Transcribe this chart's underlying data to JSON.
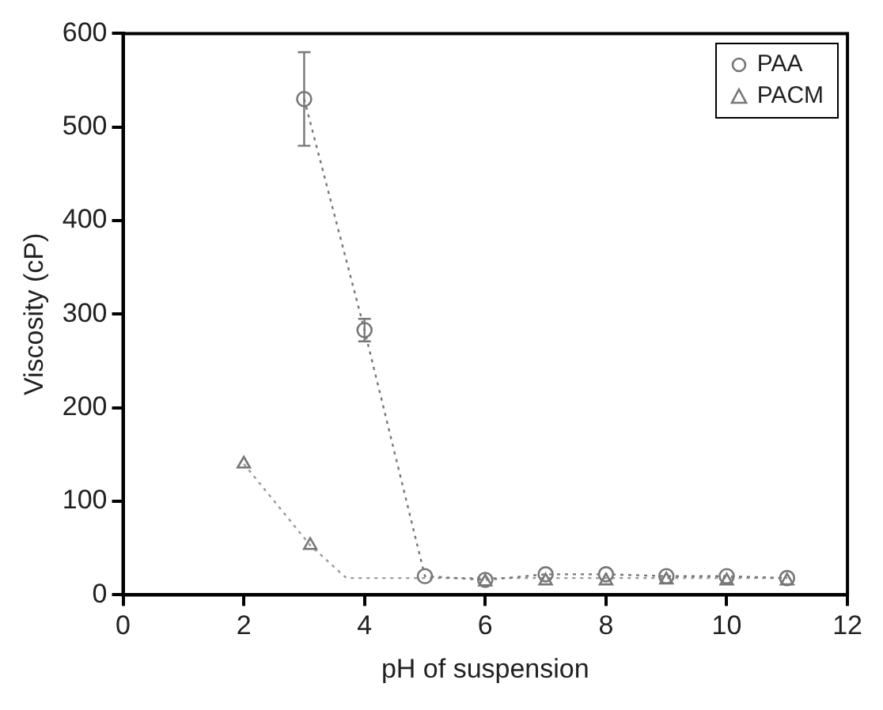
{
  "chart_data": {
    "type": "line",
    "xlabel": "pH of suspension",
    "ylabel": "Viscosity (cP)",
    "xlim": [
      0,
      12
    ],
    "xticks": [
      0,
      2,
      4,
      6,
      8,
      10,
      12
    ],
    "ylim": [
      0,
      600
    ],
    "yticks": [
      0,
      100,
      200,
      300,
      400,
      500,
      600
    ],
    "grid": false,
    "legend": "top right",
    "line_style": "dotted",
    "series": [
      {
        "name": "PAA",
        "color": "#777777",
        "marker": "circle",
        "x": [
          3,
          4,
          5,
          6,
          7,
          8,
          9,
          10,
          11
        ],
        "values": [
          530,
          283,
          20,
          16,
          22,
          22,
          20,
          20,
          18
        ],
        "errors": [
          50,
          12,
          null,
          null,
          null,
          null,
          null,
          null,
          null
        ]
      },
      {
        "name": "PACM",
        "color": "#777777",
        "marker": "triangle",
        "type": "scatter",
        "x": [
          2,
          3.1,
          6,
          7,
          8,
          9,
          10,
          11
        ],
        "values": [
          140,
          53,
          14,
          15,
          15,
          16,
          15,
          15
        ]
      },
      {
        "color": "#999999",
        "marker": "none",
        "line_style": "dotted",
        "x": [
          2,
          3.1,
          3.7,
          11
        ],
        "values": [
          140,
          53,
          18,
          18
        ]
      }
    ]
  }
}
